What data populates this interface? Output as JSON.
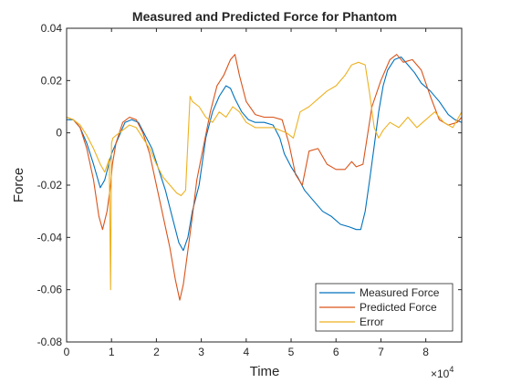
{
  "chart_data": {
    "type": "line",
    "title": "Measured and Predicted Force for Phantom",
    "xlabel": "Time",
    "ylabel": "Force",
    "xlim": [
      0,
      88000
    ],
    "ylim": [
      -0.08,
      0.04
    ],
    "x_tick_values": [
      0,
      10000,
      20000,
      30000,
      40000,
      50000,
      60000,
      70000,
      80000
    ],
    "x_tick_labels": [
      "0",
      "1",
      "2",
      "3",
      "4",
      "5",
      "6",
      "7",
      "8"
    ],
    "x_exponent_label": "×10",
    "x_exponent_power": "4",
    "y_tick_values": [
      0.04,
      0.02,
      0,
      -0.02,
      -0.04,
      -0.06,
      -0.08
    ],
    "y_tick_labels": [
      "0.04",
      "0.02",
      "0",
      "-0.02",
      "-0.04",
      "-0.06",
      "-0.08"
    ],
    "grid": false,
    "legend_position": "bottom-right",
    "series": [
      {
        "name": "Measured Force",
        "color": "#0072BD",
        "x": [
          0,
          1500,
          3000,
          4500,
          6000,
          7500,
          8500,
          10000,
          11500,
          13000,
          14500,
          16000,
          17500,
          19000,
          20500,
          22000,
          23500,
          25000,
          26000,
          27000,
          28000,
          29500,
          31000,
          32500,
          34000,
          35500,
          36500,
          37500,
          39000,
          40500,
          42000,
          44000,
          46000,
          47500,
          48500,
          50000,
          51500,
          53000,
          55000,
          57000,
          59000,
          61000,
          63000,
          64500,
          65500,
          66500,
          67500,
          68500,
          69500,
          70500,
          71500,
          73000,
          74500,
          76000,
          77500,
          79000,
          81000,
          83000,
          85000,
          86500,
          88000
        ],
        "y": [
          0.005,
          0.005,
          0.002,
          -0.004,
          -0.012,
          -0.021,
          -0.018,
          -0.008,
          -0.002,
          0.004,
          0.005,
          0.004,
          -0.001,
          -0.006,
          -0.014,
          -0.022,
          -0.032,
          -0.042,
          -0.045,
          -0.04,
          -0.03,
          -0.02,
          -0.002,
          0.008,
          0.014,
          0.018,
          0.017,
          0.013,
          0.008,
          0.005,
          0.004,
          0.004,
          0.003,
          -0.002,
          -0.008,
          -0.013,
          -0.017,
          -0.022,
          -0.026,
          -0.03,
          -0.032,
          -0.035,
          -0.036,
          -0.037,
          -0.037,
          -0.03,
          -0.018,
          -0.005,
          0.008,
          0.018,
          0.024,
          0.028,
          0.029,
          0.026,
          0.023,
          0.019,
          0.016,
          0.012,
          0.007,
          0.005,
          0.004
        ]
      },
      {
        "name": "Predicted Force",
        "color": "#D95319",
        "x": [
          0,
          1500,
          3000,
          4500,
          6000,
          7200,
          8000,
          9000,
          9800,
          10200,
          11000,
          12500,
          14000,
          15500,
          17000,
          18500,
          20000,
          21500,
          23000,
          24200,
          25200,
          26000,
          27000,
          28000,
          29000,
          30500,
          32000,
          33500,
          35000,
          36500,
          37500,
          38500,
          40000,
          42000,
          44000,
          46000,
          48000,
          49500,
          51000,
          52500,
          54000,
          56000,
          58000,
          60000,
          62000,
          63500,
          64500,
          66000,
          68000,
          70000,
          72000,
          73500,
          75000,
          77000,
          79000,
          81000,
          83000,
          85000,
          87000,
          88000
        ],
        "y": [
          0.006,
          0.005,
          0.002,
          -0.006,
          -0.018,
          -0.032,
          -0.037,
          -0.03,
          -0.02,
          -0.012,
          -0.004,
          0.004,
          0.006,
          0.005,
          0.0,
          -0.008,
          -0.02,
          -0.032,
          -0.044,
          -0.056,
          -0.064,
          -0.058,
          -0.045,
          -0.032,
          -0.018,
          -0.005,
          0.008,
          0.018,
          0.022,
          0.028,
          0.03,
          0.022,
          0.012,
          0.007,
          0.006,
          0.006,
          0.005,
          -0.004,
          -0.016,
          -0.02,
          -0.007,
          -0.006,
          -0.012,
          -0.014,
          -0.014,
          -0.011,
          -0.013,
          -0.012,
          0.01,
          0.02,
          0.028,
          0.03,
          0.027,
          0.028,
          0.024,
          0.014,
          0.005,
          0.003,
          0.004,
          0.006
        ]
      },
      {
        "name": "Error",
        "color": "#EDB120",
        "x": [
          0,
          1500,
          3000,
          4500,
          6000,
          7500,
          8500,
          9500,
          9800,
          10000,
          10300,
          11000,
          12500,
          14000,
          15500,
          17000,
          18500,
          20000,
          21500,
          23000,
          24500,
          25500,
          26500,
          27500,
          28000,
          29500,
          31000,
          32500,
          34000,
          35500,
          37000,
          38500,
          40000,
          42000,
          44000,
          46000,
          47500,
          49000,
          50500,
          52000,
          54000,
          56000,
          58000,
          60000,
          62000,
          63500,
          65000,
          66500,
          67500,
          68500,
          69500,
          70500,
          72000,
          74000,
          76000,
          78000,
          80000,
          82000,
          84000,
          86000,
          88000
        ],
        "y": [
          0.006,
          0.005,
          0.003,
          -0.001,
          -0.006,
          -0.012,
          -0.015,
          -0.01,
          -0.06,
          -0.004,
          -0.002,
          -0.001,
          0.001,
          0.003,
          0.002,
          -0.002,
          -0.006,
          -0.012,
          -0.017,
          -0.02,
          -0.023,
          -0.024,
          -0.022,
          0.014,
          0.012,
          0.01,
          0.006,
          0.004,
          0.008,
          0.006,
          0.01,
          0.008,
          0.004,
          0.002,
          0.002,
          0.002,
          0.001,
          0.0,
          -0.002,
          0.008,
          0.01,
          0.013,
          0.016,
          0.018,
          0.022,
          0.026,
          0.027,
          0.026,
          0.015,
          0.002,
          -0.002,
          0.001,
          0.004,
          0.002,
          0.006,
          0.002,
          0.005,
          0.008,
          0.004,
          0.002,
          0.008
        ]
      }
    ]
  }
}
